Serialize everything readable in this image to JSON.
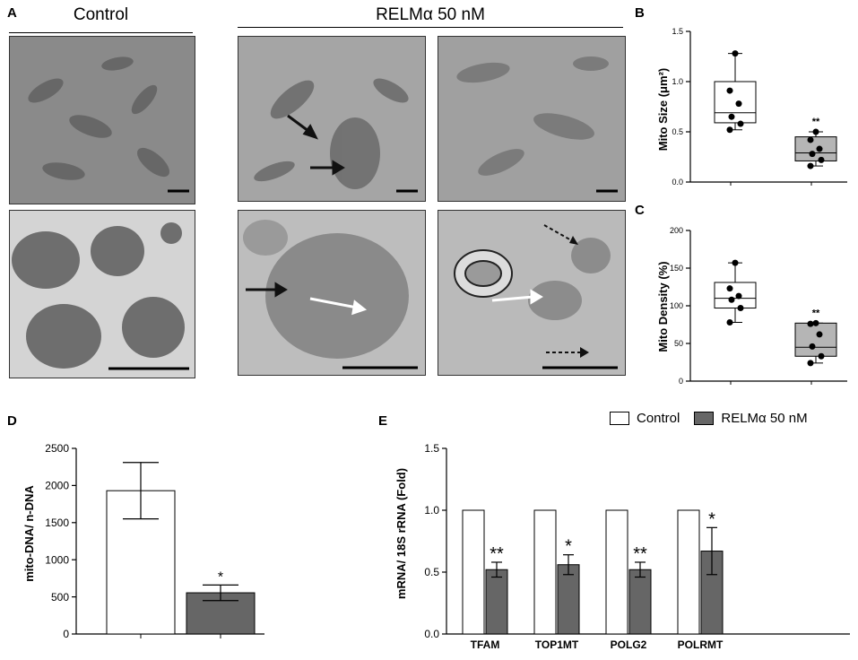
{
  "panels": {
    "A": "A",
    "B": "B",
    "C": "C",
    "D": "D",
    "E": "E"
  },
  "panel_a": {
    "control_header": "Control",
    "treatment_header": "RELMα 50 nM"
  },
  "colors": {
    "control_fill": "#ffffff",
    "treatment_fill": "#666666",
    "box_b_fill": "#ffffff",
    "box_b_treat_fill": "#b5b5b5",
    "em_low": "#8f8f8f",
    "em_high": "#6e6e6e"
  },
  "chart_data": [
    {
      "id": "B",
      "type": "box",
      "ylabel": "Mito Size (μm²)",
      "ylim": [
        0,
        1.5
      ],
      "yticks": [
        "0.0",
        "0.5",
        "1.0",
        "1.5"
      ],
      "groups": [
        {
          "name": "",
          "min": 0.52,
          "q1": 0.59,
          "median": 0.69,
          "q3": 1.0,
          "max": 1.28,
          "points": [
            0.52,
            0.58,
            0.65,
            0.78,
            0.91,
            1.28
          ],
          "annotation": ""
        },
        {
          "name": "",
          "min": 0.16,
          "q1": 0.21,
          "median": 0.29,
          "q3": 0.45,
          "max": 0.5,
          "points": [
            0.16,
            0.22,
            0.28,
            0.33,
            0.42,
            0.5
          ],
          "annotation": "**"
        }
      ]
    },
    {
      "id": "C",
      "type": "box",
      "ylabel": "Mito Density (%)",
      "ylim": [
        0,
        200
      ],
      "yticks": [
        "0",
        "50",
        "100",
        "150",
        "200"
      ],
      "groups": [
        {
          "name": "",
          "min": 78,
          "q1": 97,
          "median": 110,
          "q3": 131,
          "max": 157,
          "points": [
            78,
            97,
            108,
            113,
            123,
            157
          ],
          "annotation": ""
        },
        {
          "name": "",
          "min": 24,
          "q1": 33,
          "median": 45,
          "q3": 77,
          "max": 77,
          "points": [
            24,
            33,
            46,
            62,
            76,
            77
          ],
          "annotation": "**"
        }
      ]
    },
    {
      "id": "D",
      "type": "bar",
      "ylabel": "mito-DNA/ n-DNA",
      "ylim": [
        0,
        2500
      ],
      "yticks": [
        "0",
        "500",
        "1000",
        "1500",
        "2000",
        "2500"
      ],
      "values": [
        1930,
        555
      ],
      "errors": [
        380,
        105
      ],
      "annotations": [
        "",
        "*"
      ]
    },
    {
      "id": "E",
      "type": "bar",
      "ylabel": "mRNA/ 18S rRNA (Fold)",
      "ylim": [
        0,
        1.5
      ],
      "yticks": [
        "0.0",
        "0.5",
        "1.0",
        "1.5"
      ],
      "categories": [
        "TFAM",
        "TOP1MT",
        "POLG2",
        "POLRMT"
      ],
      "series": [
        {
          "name": "Control",
          "values": [
            1.0,
            1.0,
            1.0,
            1.0
          ],
          "errors": [
            0,
            0,
            0,
            0
          ]
        },
        {
          "name": "RELMα 50 nM",
          "values": [
            0.52,
            0.56,
            0.52,
            0.67
          ],
          "errors": [
            0.06,
            0.08,
            0.06,
            0.19
          ]
        }
      ],
      "annotations": [
        "**",
        "*",
        "**",
        "*"
      ],
      "legend": "top-right"
    }
  ]
}
